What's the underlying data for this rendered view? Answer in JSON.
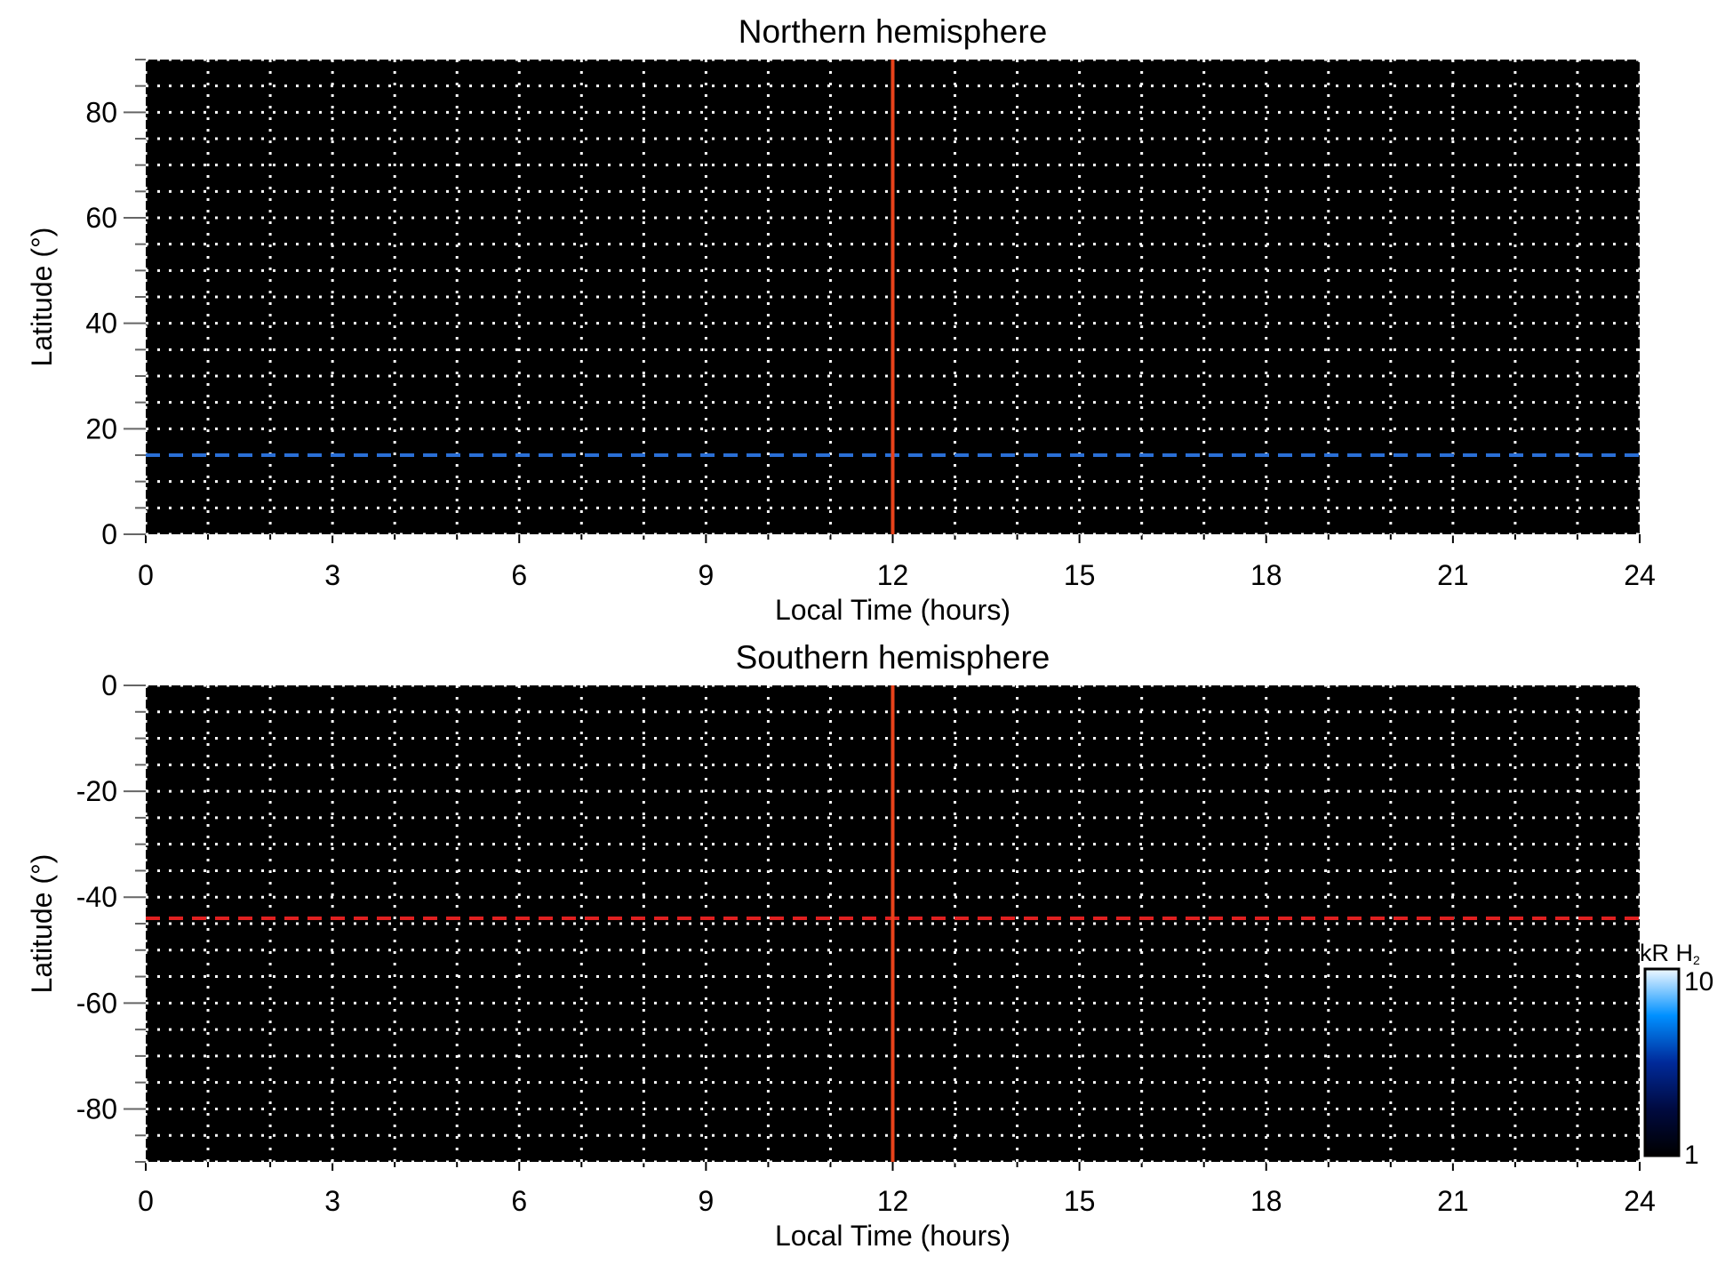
{
  "chart_data": [
    {
      "type": "heatmap",
      "title": "Northern hemisphere",
      "xlabel": "Local Time (hours)",
      "ylabel": "Latitude (°)",
      "xlim": [
        0,
        24
      ],
      "ylim": [
        0,
        90
      ],
      "xticks": [
        0,
        3,
        6,
        9,
        12,
        15,
        18,
        21,
        24
      ],
      "yticks": [
        0,
        20,
        40,
        60,
        80
      ],
      "grid": true,
      "grid_style": "dotted white, every 1 hour and 5 degrees",
      "background": "#000000",
      "vertical_line": {
        "x": 12,
        "color": "#e8421a",
        "style": "solid"
      },
      "horizontal_line": {
        "y": 15,
        "color": "#2a6fd6",
        "style": "dashed"
      }
    },
    {
      "type": "heatmap",
      "title": "Southern hemisphere",
      "xlabel": "Local Time (hours)",
      "ylabel": "Latitude (°)",
      "xlim": [
        0,
        24
      ],
      "ylim": [
        -90,
        0
      ],
      "xticks": [
        0,
        3,
        6,
        9,
        12,
        15,
        18,
        21,
        24
      ],
      "yticks": [
        0,
        -20,
        -40,
        -60,
        -80
      ],
      "grid": true,
      "grid_style": "dotted white, every 1 hour and 5 degrees",
      "background": "#000000",
      "vertical_line": {
        "x": 12,
        "color": "#e8421a",
        "style": "solid"
      },
      "horizontal_line": {
        "y": -44,
        "color": "#e02020",
        "style": "dashed"
      }
    }
  ],
  "colorbar": {
    "label": "kR H",
    "label_subscript": "2",
    "min_label": "1",
    "max_label": "10",
    "scale": "log",
    "colors": [
      "#000000",
      "#000a40",
      "#002a9a",
      "#0090ff",
      "#f0f8ff"
    ]
  }
}
